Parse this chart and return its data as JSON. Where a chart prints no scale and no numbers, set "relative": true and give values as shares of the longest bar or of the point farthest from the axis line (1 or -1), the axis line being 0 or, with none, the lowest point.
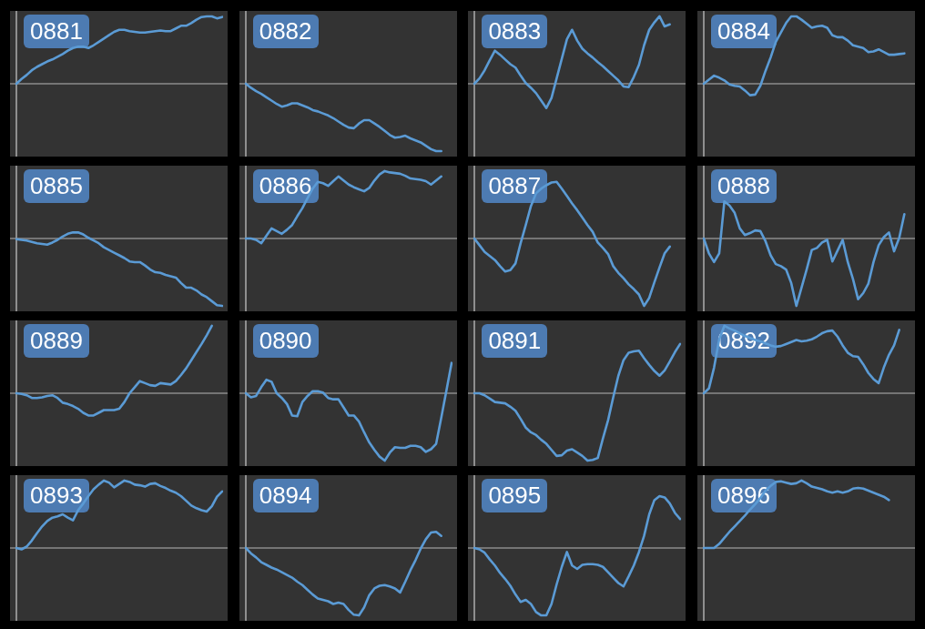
{
  "chart_data": [
    {
      "type": "line",
      "title": "0881",
      "categories": [
        null,
        null,
        null,
        null,
        null,
        null,
        null,
        null,
        null,
        null,
        null,
        null,
        null,
        null,
        null,
        null,
        null,
        null,
        null,
        null,
        null,
        null,
        null,
        null,
        null,
        null,
        null,
        null,
        null,
        null,
        null,
        null,
        null,
        null,
        null,
        null,
        null,
        null,
        null,
        null,
        null
      ],
      "values": [
        0,
        0.07,
        0.13,
        0.2,
        0.25,
        0.29,
        0.33,
        0.36,
        0.4,
        0.44,
        0.49,
        0.53,
        0.55,
        0.55,
        0.53,
        0.57,
        0.62,
        0.67,
        0.72,
        0.77,
        0.8,
        0.8,
        0.78,
        0.77,
        0.76,
        0.76,
        0.77,
        0.78,
        0.79,
        0.78,
        0.78,
        0.82,
        0.86,
        0.86,
        0.9,
        0.95,
        0.99,
        1,
        1,
        0.97,
        0.99
      ],
      "color": "#5b9bd5",
      "relative": true
    },
    {
      "type": "line",
      "title": "0882",
      "categories": [
        null,
        null,
        null,
        null,
        null,
        null,
        null,
        null,
        null,
        null,
        null,
        null,
        null,
        null,
        null,
        null,
        null,
        null,
        null,
        null,
        null,
        null,
        null,
        null,
        null,
        null,
        null,
        null,
        null,
        null,
        null,
        null,
        null,
        null,
        null,
        null,
        null,
        null,
        null,
        null,
        null
      ],
      "values": [
        0,
        -0.06,
        -0.11,
        -0.15,
        -0.2,
        -0.25,
        -0.3,
        -0.34,
        -0.32,
        -0.29,
        -0.29,
        -0.32,
        -0.35,
        -0.39,
        -0.41,
        -0.44,
        -0.47,
        -0.51,
        -0.56,
        -0.61,
        -0.65,
        -0.66,
        -0.59,
        -0.54,
        -0.54,
        -0.59,
        -0.64,
        -0.7,
        -0.76,
        -0.8,
        -0.79,
        -0.77,
        -0.81,
        -0.84,
        -0.87,
        -0.92,
        -0.97,
        -1,
        -1,
        null,
        null
      ],
      "color": "#5b9bd5",
      "relative": true
    },
    {
      "type": "line",
      "title": "0883",
      "categories": [
        null,
        null,
        null,
        null,
        null,
        null,
        null,
        null,
        null,
        null,
        null,
        null,
        null,
        null,
        null,
        null,
        null,
        null,
        null,
        null,
        null,
        null,
        null,
        null,
        null,
        null,
        null,
        null,
        null,
        null,
        null,
        null,
        null,
        null,
        null,
        null,
        null,
        null,
        null,
        null,
        null
      ],
      "values": [
        0,
        0.08,
        0.2,
        0.35,
        0.49,
        0.43,
        0.36,
        0.29,
        0.24,
        0.12,
        0.01,
        -0.06,
        -0.14,
        -0.25,
        -0.36,
        -0.21,
        0.08,
        0.37,
        0.66,
        0.8,
        0.64,
        0.52,
        0.45,
        0.39,
        0.32,
        0.26,
        0.19,
        0.12,
        0.05,
        -0.04,
        -0.05,
        0.1,
        0.28,
        0.57,
        0.8,
        0.91,
        1,
        0.85,
        0.88,
        null,
        null
      ],
      "color": "#5b9bd5",
      "relative": true
    },
    {
      "type": "line",
      "title": "0884",
      "categories": [
        null,
        null,
        null,
        null,
        null,
        null,
        null,
        null,
        null,
        null,
        null,
        null,
        null,
        null,
        null,
        null,
        null,
        null,
        null,
        null,
        null,
        null,
        null,
        null,
        null,
        null,
        null,
        null,
        null,
        null,
        null,
        null,
        null,
        null,
        null,
        null,
        null,
        null,
        null,
        null,
        null
      ],
      "values": [
        0,
        0.06,
        0.12,
        0.09,
        0.05,
        -0.01,
        -0.03,
        -0.04,
        -0.1,
        -0.17,
        -0.16,
        -0.03,
        0.19,
        0.39,
        0.62,
        0.76,
        0.9,
        1,
        1,
        0.95,
        0.89,
        0.83,
        0.85,
        0.86,
        0.83,
        0.72,
        0.69,
        0.69,
        0.64,
        0.57,
        0.55,
        0.53,
        0.47,
        0.48,
        0.51,
        0.47,
        0.43,
        0.43,
        0.44,
        0.45,
        null
      ],
      "color": "#5b9bd5",
      "relative": true
    },
    {
      "type": "line",
      "title": "0885",
      "categories": [
        null,
        null,
        null,
        null,
        null,
        null,
        null,
        null,
        null,
        null,
        null,
        null,
        null,
        null,
        null,
        null,
        null,
        null,
        null,
        null,
        null,
        null,
        null,
        null,
        null,
        null,
        null,
        null,
        null,
        null,
        null,
        null,
        null,
        null,
        null,
        null,
        null,
        null,
        null,
        null,
        null
      ],
      "values": [
        -0.01,
        -0.02,
        -0.03,
        -0.05,
        -0.07,
        -0.08,
        -0.09,
        -0.06,
        -0.02,
        0.03,
        0.07,
        0.09,
        0.09,
        0.06,
        0.01,
        -0.03,
        -0.07,
        -0.13,
        -0.17,
        -0.21,
        -0.25,
        -0.29,
        -0.34,
        -0.35,
        -0.35,
        -0.4,
        -0.46,
        -0.5,
        -0.51,
        -0.54,
        -0.56,
        -0.58,
        -0.66,
        -0.73,
        -0.73,
        -0.77,
        -0.83,
        -0.87,
        -0.93,
        -0.99,
        -1
      ],
      "color": "#5b9bd5",
      "relative": true
    },
    {
      "type": "line",
      "title": "0886",
      "categories": [
        null,
        null,
        null,
        null,
        null,
        null,
        null,
        null,
        null,
        null,
        null,
        null,
        null,
        null,
        null,
        null,
        null,
        null,
        null,
        null,
        null,
        null,
        null,
        null,
        null,
        null,
        null,
        null,
        null,
        null,
        null,
        null,
        null,
        null,
        null,
        null,
        null,
        null,
        null,
        null,
        null
      ],
      "values": [
        0,
        0,
        -0.02,
        -0.07,
        0.04,
        0.15,
        0.11,
        0.07,
        0.13,
        0.2,
        0.33,
        0.45,
        0.6,
        0.74,
        0.84,
        0.82,
        0.78,
        0.85,
        0.92,
        0.86,
        0.8,
        0.76,
        0.73,
        0.7,
        0.75,
        0.86,
        0.95,
        1,
        0.98,
        0.97,
        0.96,
        0.93,
        0.89,
        0.88,
        0.87,
        0.85,
        0.8,
        0.86,
        0.92,
        null,
        null
      ],
      "color": "#5b9bd5",
      "relative": true
    },
    {
      "type": "line",
      "title": "0887",
      "categories": [
        null,
        null,
        null,
        null,
        null,
        null,
        null,
        null,
        null,
        null,
        null,
        null,
        null,
        null,
        null,
        null,
        null,
        null,
        null,
        null,
        null,
        null,
        null,
        null,
        null,
        null,
        null,
        null,
        null,
        null,
        null,
        null,
        null,
        null,
        null,
        null,
        null,
        null,
        null,
        null,
        null
      ],
      "values": [
        0,
        -0.1,
        -0.2,
        -0.26,
        -0.32,
        -0.41,
        -0.49,
        -0.47,
        -0.37,
        -0.07,
        0.2,
        0.48,
        0.67,
        0.74,
        0.79,
        0.83,
        0.84,
        0.74,
        0.63,
        0.52,
        0.42,
        0.31,
        0.2,
        0.1,
        -0.06,
        -0.14,
        -0.23,
        -0.41,
        -0.51,
        -0.59,
        -0.68,
        -0.75,
        -0.83,
        -1,
        -0.88,
        -0.65,
        -0.43,
        -0.22,
        -0.12,
        null,
        null
      ],
      "color": "#5b9bd5",
      "relative": true
    },
    {
      "type": "line",
      "title": "0888",
      "categories": [
        null,
        null,
        null,
        null,
        null,
        null,
        null,
        null,
        null,
        null,
        null,
        null,
        null,
        null,
        null,
        null,
        null,
        null,
        null,
        null,
        null,
        null,
        null,
        null,
        null,
        null,
        null,
        null,
        null,
        null,
        null,
        null,
        null,
        null,
        null,
        null,
        null,
        null,
        null,
        null,
        null
      ],
      "values": [
        0,
        -0.22,
        -0.35,
        -0.22,
        0.55,
        0.49,
        0.38,
        0.15,
        0.05,
        0.08,
        0.12,
        0.11,
        -0.04,
        -0.25,
        -0.38,
        -0.41,
        -0.46,
        -0.66,
        -1,
        -0.73,
        -0.46,
        -0.17,
        -0.14,
        -0.06,
        -0.02,
        -0.34,
        -0.18,
        -0.02,
        -0.35,
        -0.6,
        -0.9,
        -0.81,
        -0.67,
        -0.35,
        -0.1,
        0.02,
        0.09,
        -0.19,
        0.01,
        0.36,
        null
      ],
      "color": "#5b9bd5",
      "relative": true
    },
    {
      "type": "line",
      "title": "0889",
      "categories": [
        null,
        null,
        null,
        null,
        null,
        null,
        null,
        null,
        null,
        null,
        null,
        null,
        null,
        null,
        null,
        null,
        null,
        null,
        null,
        null,
        null,
        null,
        null,
        null,
        null,
        null,
        null,
        null,
        null,
        null,
        null,
        null,
        null,
        null,
        null,
        null,
        null,
        null,
        null,
        null,
        null
      ],
      "values": [
        0,
        -0.01,
        -0.03,
        -0.07,
        -0.07,
        -0.06,
        -0.04,
        -0.03,
        -0.07,
        -0.14,
        -0.16,
        -0.19,
        -0.23,
        -0.29,
        -0.33,
        -0.33,
        -0.29,
        -0.25,
        -0.25,
        -0.25,
        -0.23,
        -0.13,
        0,
        0.09,
        0.18,
        0.15,
        0.12,
        0.11,
        0.15,
        0.14,
        0.13,
        0.18,
        0.27,
        0.37,
        0.49,
        0.61,
        0.73,
        0.86,
        1,
        null,
        null
      ],
      "color": "#5b9bd5",
      "relative": true
    },
    {
      "type": "line",
      "title": "0890",
      "categories": [
        null,
        null,
        null,
        null,
        null,
        null,
        null,
        null,
        null,
        null,
        null,
        null,
        null,
        null,
        null,
        null,
        null,
        null,
        null,
        null,
        null,
        null,
        null,
        null,
        null,
        null,
        null,
        null,
        null,
        null,
        null,
        null,
        null,
        null,
        null,
        null,
        null,
        null,
        null,
        null,
        null
      ],
      "values": [
        0,
        -0.06,
        -0.04,
        0.09,
        0.2,
        0.17,
        0,
        -0.07,
        -0.16,
        -0.33,
        -0.34,
        -0.13,
        -0.04,
        0.03,
        0.03,
        0.01,
        -0.07,
        -0.09,
        -0.09,
        -0.21,
        -0.33,
        -0.33,
        -0.42,
        -0.58,
        -0.73,
        -0.84,
        -0.94,
        -1,
        -0.88,
        -0.8,
        -0.81,
        -0.81,
        -0.78,
        -0.78,
        -0.8,
        -0.87,
        -0.83,
        -0.75,
        -0.36,
        0.04,
        0.45
      ],
      "color": "#5b9bd5",
      "relative": true
    },
    {
      "type": "line",
      "title": "0891",
      "categories": [
        null,
        null,
        null,
        null,
        null,
        null,
        null,
        null,
        null,
        null,
        null,
        null,
        null,
        null,
        null,
        null,
        null,
        null,
        null,
        null,
        null,
        null,
        null,
        null,
        null,
        null,
        null,
        null,
        null,
        null,
        null,
        null,
        null,
        null,
        null,
        null,
        null,
        null,
        null,
        null,
        null
      ],
      "values": [
        0,
        0,
        -0.03,
        -0.08,
        -0.13,
        -0.14,
        -0.15,
        -0.2,
        -0.26,
        -0.38,
        -0.51,
        -0.58,
        -0.62,
        -0.69,
        -0.75,
        -0.84,
        -0.93,
        -0.92,
        -0.85,
        -0.83,
        -0.88,
        -0.93,
        -1,
        -0.99,
        -0.96,
        -0.67,
        -0.4,
        -0.06,
        0.26,
        0.49,
        0.6,
        0.62,
        0.63,
        0.52,
        0.42,
        0.33,
        0.26,
        0.34,
        0.47,
        0.61,
        0.73
      ],
      "color": "#5b9bd5",
      "relative": true
    },
    {
      "type": "line",
      "title": "0892",
      "categories": [
        null,
        null,
        null,
        null,
        null,
        null,
        null,
        null,
        null,
        null,
        null,
        null,
        null,
        null,
        null,
        null,
        null,
        null,
        null,
        null,
        null,
        null,
        null,
        null,
        null,
        null,
        null,
        null,
        null,
        null,
        null,
        null,
        null,
        null,
        null,
        null,
        null,
        null,
        null,
        null,
        null
      ],
      "values": [
        0,
        0.07,
        0.38,
        0.8,
        1,
        0.96,
        0.93,
        0.89,
        0.85,
        0.82,
        0.79,
        0.77,
        0.74,
        0.71,
        0.69,
        0.7,
        0.73,
        0.76,
        0.79,
        0.77,
        0.78,
        0.8,
        0.84,
        0.89,
        0.92,
        0.93,
        0.84,
        0.71,
        0.6,
        0.55,
        0.54,
        0.43,
        0.3,
        0.21,
        0.15,
        0.38,
        0.57,
        0.71,
        0.94,
        null,
        null
      ],
      "color": "#5b9bd5",
      "relative": true
    },
    {
      "type": "line",
      "title": "0893",
      "categories": [
        null,
        null,
        null,
        null,
        null,
        null,
        null,
        null,
        null,
        null,
        null,
        null,
        null,
        null,
        null,
        null,
        null,
        null,
        null,
        null,
        null,
        null,
        null,
        null,
        null,
        null,
        null,
        null,
        null,
        null,
        null,
        null,
        null,
        null,
        null,
        null,
        null,
        null,
        null,
        null,
        null
      ],
      "values": [
        0,
        -0.02,
        0.02,
        0.11,
        0.22,
        0.32,
        0.4,
        0.45,
        0.47,
        0.5,
        0.45,
        0.41,
        0.56,
        0.66,
        0.77,
        0.87,
        0.94,
        1,
        0.97,
        0.9,
        0.95,
        1,
        0.98,
        0.94,
        0.93,
        0.91,
        0.95,
        0.96,
        0.92,
        0.89,
        0.85,
        0.82,
        0.77,
        0.7,
        0.63,
        0.59,
        0.56,
        0.54,
        0.62,
        0.76,
        0.84
      ],
      "color": "#5b9bd5",
      "relative": true
    },
    {
      "type": "line",
      "title": "0894",
      "categories": [
        null,
        null,
        null,
        null,
        null,
        null,
        null,
        null,
        null,
        null,
        null,
        null,
        null,
        null,
        null,
        null,
        null,
        null,
        null,
        null,
        null,
        null,
        null,
        null,
        null,
        null,
        null,
        null,
        null,
        null,
        null,
        null,
        null,
        null,
        null,
        null,
        null,
        null,
        null,
        null,
        null
      ],
      "values": [
        0,
        -0.08,
        -0.14,
        -0.21,
        -0.25,
        -0.29,
        -0.32,
        -0.36,
        -0.4,
        -0.44,
        -0.5,
        -0.55,
        -0.62,
        -0.69,
        -0.75,
        -0.77,
        -0.79,
        -0.83,
        -0.81,
        -0.83,
        -0.92,
        -0.99,
        -1,
        -0.88,
        -0.7,
        -0.6,
        -0.56,
        -0.55,
        -0.57,
        -0.6,
        -0.66,
        -0.5,
        -0.33,
        -0.18,
        -0.01,
        0.13,
        0.23,
        0.24,
        0.18,
        null,
        null
      ],
      "color": "#5b9bd5",
      "relative": true
    },
    {
      "type": "line",
      "title": "0895",
      "categories": [
        null,
        null,
        null,
        null,
        null,
        null,
        null,
        null,
        null,
        null,
        null,
        null,
        null,
        null,
        null,
        null,
        null,
        null,
        null,
        null,
        null,
        null,
        null,
        null,
        null,
        null,
        null,
        null,
        null,
        null,
        null,
        null,
        null,
        null,
        null,
        null,
        null,
        null,
        null,
        null,
        null
      ],
      "values": [
        0,
        -0.02,
        -0.07,
        -0.17,
        -0.26,
        -0.37,
        -0.46,
        -0.56,
        -0.69,
        -0.8,
        -0.77,
        -0.83,
        -0.95,
        -1,
        -1,
        -0.83,
        -0.54,
        -0.28,
        -0.06,
        -0.26,
        -0.31,
        -0.25,
        -0.24,
        -0.24,
        -0.25,
        -0.28,
        -0.36,
        -0.44,
        -0.52,
        -0.57,
        -0.42,
        -0.26,
        -0.06,
        0.18,
        0.5,
        0.71,
        0.77,
        0.75,
        0.66,
        0.52,
        0.43
      ],
      "color": "#5b9bd5",
      "relative": true
    },
    {
      "type": "line",
      "title": "0896",
      "categories": [
        null,
        null,
        null,
        null,
        null,
        null,
        null,
        null,
        null,
        null,
        null,
        null,
        null,
        null,
        null,
        null,
        null,
        null,
        null,
        null,
        null,
        null,
        null,
        null,
        null,
        null,
        null,
        null,
        null,
        null,
        null,
        null,
        null,
        null,
        null,
        null,
        null,
        null,
        null,
        null,
        null
      ],
      "values": [
        0,
        0,
        0,
        0.06,
        0.15,
        0.24,
        0.32,
        0.4,
        0.48,
        0.57,
        0.65,
        0.74,
        0.85,
        0.92,
        0.98,
        0.99,
        0.97,
        0.95,
        0.96,
        1,
        0.96,
        0.91,
        0.89,
        0.87,
        0.84,
        0.82,
        0.84,
        0.82,
        0.84,
        0.88,
        0.89,
        0.88,
        0.85,
        0.82,
        0.79,
        0.76,
        0.71,
        null,
        null,
        null,
        null
      ],
      "color": "#5b9bd5",
      "relative": true
    }
  ]
}
